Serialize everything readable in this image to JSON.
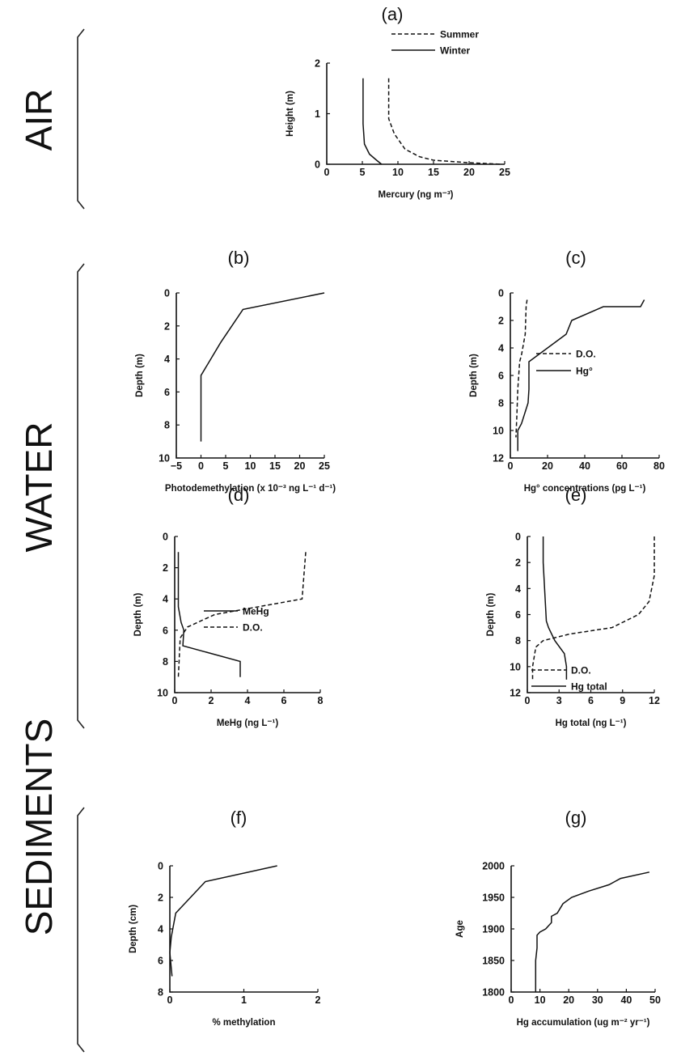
{
  "sections": {
    "air": "AIR",
    "water": "WATER",
    "sediments": "SEDIMENTS"
  },
  "chart_data": [
    {
      "id": "a",
      "panel_label": "(a)",
      "type": "line",
      "xlabel": "Mercury (ng m⁻³)",
      "ylabel": "Height (m)",
      "xlim": [
        0,
        25
      ],
      "ylim": [
        0,
        2
      ],
      "xticks": [
        0,
        5,
        10,
        15,
        20,
        25
      ],
      "yticks": [
        0,
        1,
        2
      ],
      "legend_position": "top-right",
      "series": [
        {
          "name": "Summer",
          "style": "dashed",
          "points": [
            [
              8.7,
              1.7
            ],
            [
              8.7,
              0.9
            ],
            [
              9.5,
              0.6
            ],
            [
              11,
              0.3
            ],
            [
              13,
              0.15
            ],
            [
              15,
              0.08
            ],
            [
              20,
              0.03
            ],
            [
              24.5,
              0.0
            ]
          ]
        },
        {
          "name": "Winter",
          "style": "solid",
          "points": [
            [
              5.1,
              1.7
            ],
            [
              5.1,
              0.8
            ],
            [
              5.3,
              0.4
            ],
            [
              6,
              0.2
            ],
            [
              7,
              0.08
            ],
            [
              7.7,
              0.0
            ]
          ]
        }
      ]
    },
    {
      "id": "b",
      "panel_label": "(b)",
      "type": "line",
      "xlabel": "Photodemethylation (x 10⁻³ ng L⁻¹ d⁻¹)",
      "ylabel": "Depth (m)",
      "xlim": [
        -5,
        25
      ],
      "ylim": [
        0,
        10
      ],
      "y_inverted": true,
      "xticks": [
        -5,
        0,
        5,
        10,
        15,
        20,
        25
      ],
      "yticks": [
        0,
        2,
        4,
        6,
        8,
        10
      ],
      "series": [
        {
          "name": "",
          "style": "solid",
          "points": [
            [
              25,
              0
            ],
            [
              8.5,
              1
            ],
            [
              4,
              3
            ],
            [
              0,
              5
            ],
            [
              0,
              9
            ]
          ]
        }
      ]
    },
    {
      "id": "c",
      "panel_label": "(c)",
      "type": "line",
      "xlabel": "Hg° concentrations (pg L⁻¹)",
      "ylabel": "Depth (m)",
      "xlim": [
        0,
        80
      ],
      "ylim": [
        0,
        12
      ],
      "y_inverted": true,
      "xticks": [
        0,
        20,
        40,
        60,
        80
      ],
      "yticks": [
        0,
        2,
        4,
        6,
        8,
        10,
        12
      ],
      "legend_position": "middle-right",
      "series": [
        {
          "name": "D.O.",
          "style": "dashed",
          "points": [
            [
              9,
              0.5
            ],
            [
              8.5,
              1
            ],
            [
              8,
              3
            ],
            [
              6,
              4.5
            ],
            [
              5,
              5
            ],
            [
              4,
              7
            ],
            [
              3.5,
              9
            ],
            [
              3,
              10.5
            ]
          ]
        },
        {
          "name": "Hg°",
          "style": "solid",
          "points": [
            [
              72,
              0.5
            ],
            [
              70,
              1
            ],
            [
              50,
              1
            ],
            [
              33,
              2
            ],
            [
              30,
              3
            ],
            [
              10,
              5
            ],
            [
              10,
              7
            ],
            [
              9.5,
              8
            ],
            [
              6,
              9.5
            ],
            [
              4,
              10
            ],
            [
              4,
              11.5
            ]
          ]
        }
      ]
    },
    {
      "id": "d",
      "panel_label": "(d)",
      "type": "line",
      "xlabel": "MeHg (ng L⁻¹)",
      "ylabel": "Depth (m)",
      "xlim": [
        0,
        8
      ],
      "ylim": [
        0,
        10
      ],
      "y_inverted": true,
      "xticks": [
        0,
        2,
        4,
        6,
        8
      ],
      "yticks": [
        0,
        2,
        4,
        6,
        8,
        10
      ],
      "legend_position": "middle-right",
      "series": [
        {
          "name": "MeHg",
          "style": "solid",
          "points": [
            [
              0.2,
              1
            ],
            [
              0.2,
              4.5
            ],
            [
              0.35,
              5.5
            ],
            [
              0.5,
              6
            ],
            [
              0.45,
              7
            ],
            [
              3.6,
              8
            ],
            [
              3.6,
              9
            ]
          ]
        },
        {
          "name": "D.O.",
          "style": "dashed",
          "points": [
            [
              7.2,
              1
            ],
            [
              7,
              4
            ],
            [
              2.2,
              5
            ],
            [
              0.7,
              5.8
            ],
            [
              0.3,
              6.5
            ],
            [
              0.2,
              9
            ]
          ]
        }
      ]
    },
    {
      "id": "e",
      "panel_label": "(e)",
      "type": "line",
      "xlabel": "Hg total (ng L⁻¹)",
      "ylabel": "Depth (m)",
      "xlim": [
        0,
        12
      ],
      "ylim": [
        0,
        12
      ],
      "y_inverted": true,
      "xticks": [
        0,
        3,
        6,
        9,
        12
      ],
      "yticks": [
        0,
        2,
        4,
        6,
        8,
        10,
        12
      ],
      "legend_position": "bottom-right",
      "series": [
        {
          "name": "D.O.",
          "style": "dashed",
          "points": [
            [
              12,
              0
            ],
            [
              12,
              3
            ],
            [
              11.5,
              5
            ],
            [
              10.5,
              6
            ],
            [
              8,
              7
            ],
            [
              4,
              7.5
            ],
            [
              1.5,
              8
            ],
            [
              0.8,
              8.5
            ],
            [
              0.5,
              10
            ],
            [
              0.5,
              11
            ]
          ]
        },
        {
          "name": "Hg total",
          "style": "solid",
          "points": [
            [
              1.5,
              0
            ],
            [
              1.5,
              2
            ],
            [
              1.8,
              6.5
            ],
            [
              2,
              7
            ],
            [
              2.6,
              8
            ],
            [
              3.5,
              9
            ],
            [
              3.7,
              10
            ],
            [
              3.7,
              11
            ]
          ]
        }
      ]
    },
    {
      "id": "f",
      "panel_label": "(f)",
      "type": "line",
      "xlabel": "% methylation",
      "ylabel": "Depth (cm)",
      "xlim": [
        0,
        2
      ],
      "ylim": [
        0,
        8
      ],
      "y_inverted": true,
      "xticks": [
        0,
        1,
        2
      ],
      "yticks": [
        0,
        2,
        4,
        6,
        8
      ],
      "series": [
        {
          "name": "",
          "style": "solid",
          "points": [
            [
              1.45,
              0
            ],
            [
              0.48,
              1
            ],
            [
              0.08,
              3
            ],
            [
              0.02,
              4.5
            ],
            [
              0,
              5.5
            ],
            [
              0.02,
              6.5
            ],
            [
              0.03,
              7
            ]
          ]
        }
      ]
    },
    {
      "id": "g",
      "panel_label": "(g)",
      "type": "line",
      "xlabel": "Hg accumulation (ug m⁻² yr⁻¹)",
      "ylabel": "Age",
      "xlim": [
        0,
        50
      ],
      "ylim": [
        1800,
        2000
      ],
      "xticks": [
        0,
        10,
        20,
        30,
        40,
        50
      ],
      "yticks": [
        1800,
        1850,
        1900,
        1950,
        2000
      ],
      "series": [
        {
          "name": "",
          "style": "solid",
          "points": [
            [
              48,
              1990
            ],
            [
              38,
              1980
            ],
            [
              34,
              1970
            ],
            [
              27,
              1960
            ],
            [
              21,
              1950
            ],
            [
              18,
              1940
            ],
            [
              16,
              1925
            ],
            [
              14,
              1920
            ],
            [
              14,
              1910
            ],
            [
              12,
              1900
            ],
            [
              10,
              1895
            ],
            [
              9,
              1890
            ],
            [
              9,
              1870
            ],
            [
              8.5,
              1850
            ],
            [
              8.5,
              1800
            ]
          ]
        }
      ]
    }
  ]
}
